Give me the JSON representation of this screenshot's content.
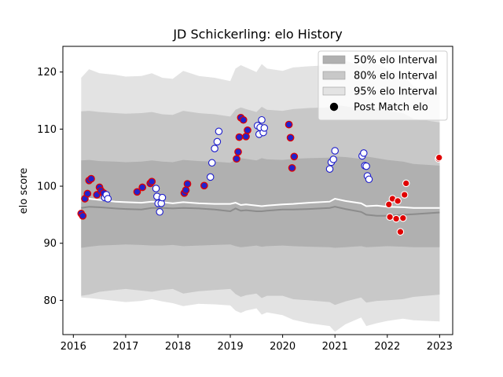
{
  "chart_data": {
    "type": "scatter",
    "title": "JD Schickerling: elo History",
    "xlabel": "",
    "ylabel": "elo score",
    "xlim": [
      2015.8,
      2023.25
    ],
    "ylim": [
      74,
      124.5
    ],
    "x_ticks": [
      2016,
      2017,
      2018,
      2019,
      2020,
      2021,
      2022,
      2023
    ],
    "x_tick_labels": [
      "2016",
      "2017",
      "2018",
      "2019",
      "2020",
      "2021",
      "2022",
      "2023"
    ],
    "y_ticks": [
      80,
      90,
      100,
      110,
      120
    ],
    "y_tick_labels": [
      "80",
      "90",
      "100",
      "110",
      "120"
    ],
    "grid": false,
    "legend_position": "top-right",
    "legend": [
      {
        "label": "50% elo Interval",
        "kind": "band",
        "color": "#b0b0b0"
      },
      {
        "label": "80% elo Interval",
        "kind": "band",
        "color": "#c8c8c8"
      },
      {
        "label": "95% elo Interval",
        "kind": "band",
        "color": "#e3e3e3"
      },
      {
        "label": "Post Match elo",
        "kind": "marker",
        "color": "#000000"
      }
    ],
    "colors": {
      "band_50": "#b0b0b0",
      "band_80": "#c8c8c8",
      "band_95": "#e3e3e3",
      "median_line": "#ffffff",
      "mean_line": "#8c8c8c",
      "win_face": "#2222cc",
      "win_edge": "#e00000",
      "loss_face": "#ffffff",
      "loss_edge": "#1a1acc",
      "recent_face": "#e00000",
      "recent_edge": "#ffffff"
    },
    "bands": {
      "x": [
        2016.15,
        2016.3,
        2016.5,
        2016.8,
        2017.0,
        2017.3,
        2017.5,
        2017.7,
        2017.9,
        2018.1,
        2018.4,
        2018.7,
        2019.0,
        2019.1,
        2019.2,
        2019.3,
        2019.5,
        2019.6,
        2019.7,
        2020.0,
        2020.2,
        2020.5,
        2020.9,
        2021.0,
        2021.2,
        2021.5,
        2021.6,
        2021.8,
        2022.0,
        2022.3,
        2022.5,
        2023.0
      ],
      "p97_5": [
        119,
        120.5,
        119.8,
        119.5,
        119.2,
        119.3,
        119.8,
        119,
        118.8,
        120.2,
        119.3,
        119,
        118.4,
        120.6,
        121.2,
        120.8,
        120,
        121.4,
        120.6,
        120.2,
        120.8,
        121,
        121.2,
        121.8,
        122,
        121,
        122,
        121.5,
        120.5,
        119.5,
        117.5,
        116.3
      ],
      "p90": [
        113.1,
        113.2,
        113,
        112.8,
        112.7,
        112.8,
        113,
        112.6,
        112.5,
        113.2,
        112.8,
        112.6,
        112.2,
        113.4,
        113.8,
        113.5,
        113,
        113.9,
        113.4,
        113.2,
        113.5,
        113.7,
        113.8,
        114.2,
        114,
        113.5,
        114.2,
        113.7,
        113.2,
        112.8,
        111.8,
        111.2
      ],
      "p75": [
        104.5,
        104.6,
        104.4,
        104.3,
        104.2,
        104.3,
        104.5,
        104.3,
        104.2,
        104.6,
        104.4,
        104.3,
        104.1,
        104.7,
        104.9,
        104.8,
        104.5,
        104.9,
        104.7,
        104.6,
        104.8,
        104.9,
        105,
        105.2,
        105.1,
        104.8,
        105.2,
        104.9,
        104.6,
        104.3,
        103.9,
        103.6
      ],
      "p25": [
        89.2,
        89.4,
        89.6,
        89.7,
        89.8,
        89.7,
        89.6,
        89.6,
        89.7,
        89.5,
        89.6,
        89.7,
        89.8,
        89.5,
        89.3,
        89.4,
        89.6,
        89.4,
        89.5,
        89.6,
        89.5,
        89.4,
        89.3,
        89.2,
        89.3,
        89.5,
        89.3,
        89.4,
        89.5,
        89.4,
        89.3,
        89.3
      ],
      "p10": [
        80.8,
        81,
        81.5,
        81.8,
        82,
        81.7,
        81.5,
        81.8,
        82,
        81.2,
        81.6,
        81.8,
        82,
        81.1,
        80.6,
        80.9,
        81.2,
        80.4,
        80.8,
        80.8,
        80.2,
        80,
        79.7,
        79.2,
        79.8,
        80.5,
        79.6,
        79.9,
        80,
        80.2,
        80.6,
        81
      ],
      "p2_5": [
        80.5,
        80.4,
        80.2,
        79.9,
        79.7,
        79.9,
        80.2,
        79.8,
        79.5,
        79,
        79.4,
        79.3,
        79.1,
        78.2,
        77.8,
        78.2,
        78.6,
        77.5,
        77.9,
        77.4,
        76.6,
        76,
        75.5,
        74.5,
        75.8,
        77,
        75.5,
        76,
        76.4,
        76.8,
        76.5,
        76.3
      ],
      "median": [
        97.5,
        97.8,
        97.6,
        97.3,
        97.2,
        97.1,
        97.3,
        97.2,
        97,
        97.2,
        97,
        96.9,
        96.9,
        97.1,
        96.7,
        96.8,
        96.6,
        96.5,
        96.6,
        96.8,
        96.9,
        97.1,
        97.3,
        97.8,
        97.4,
        97,
        96.5,
        96.6,
        96.4,
        96.3,
        96.2,
        96.2
      ],
      "mean": [
        96.2,
        96.4,
        96.3,
        96.1,
        96,
        95.9,
        96.2,
        96.2,
        96.1,
        96.2,
        96.1,
        95.9,
        95.6,
        96.1,
        95.7,
        95.8,
        95.6,
        95.6,
        95.7,
        95.9,
        95.9,
        96,
        96.2,
        96.4,
        96,
        95.5,
        95,
        94.8,
        94.8,
        95,
        95.1,
        95.4
      ]
    },
    "points_win": {
      "x": [
        2016.15,
        2016.18,
        2016.22,
        2016.27,
        2016.3,
        2016.34,
        2016.45,
        2016.5,
        2016.53,
        2016.58,
        2017.22,
        2017.32,
        2017.47,
        2017.5,
        2018.12,
        2018.15,
        2018.18,
        2018.5,
        2019.12,
        2019.15,
        2019.17,
        2019.2,
        2019.25,
        2019.3,
        2019.33,
        2020.12,
        2020.15,
        2020.18,
        2020.22
      ],
      "y": [
        95.2,
        94.8,
        97.8,
        98.7,
        101.0,
        101.3,
        98.5,
        99.8,
        99.2,
        98.8,
        99.0,
        99.8,
        100.5,
        100.8,
        98.8,
        99.3,
        100.4,
        100.1,
        104.8,
        106.0,
        108.6,
        112.0,
        111.6,
        108.7,
        109.8,
        110.8,
        108.5,
        103.2,
        105.2
      ]
    },
    "points_loss": {
      "x": [
        2016.6,
        2016.63,
        2016.66,
        2017.58,
        2017.6,
        2017.62,
        2017.65,
        2017.68,
        2017.7,
        2018.62,
        2018.65,
        2018.7,
        2018.75,
        2018.78,
        2019.52,
        2019.55,
        2019.57,
        2019.6,
        2019.63,
        2019.65,
        2020.9,
        2020.93,
        2020.97,
        2021.0,
        2021.52,
        2021.55,
        2021.57,
        2021.6,
        2021.62,
        2021.65
      ],
      "y": [
        98.0,
        98.5,
        97.8,
        99.6,
        98.2,
        97.0,
        95.5,
        97.0,
        98.0,
        101.6,
        104.1,
        106.6,
        107.8,
        109.6,
        110.6,
        109.1,
        110.3,
        111.6,
        109.4,
        110.2,
        103.0,
        104.2,
        104.7,
        106.2,
        105.3,
        105.8,
        103.6,
        103.5,
        101.8,
        101.2
      ]
    },
    "points_recent": {
      "x": [
        2022.03,
        2022.05,
        2022.1,
        2022.17,
        2022.2,
        2022.25,
        2022.3,
        2022.33,
        2022.36,
        2022.98,
        2022.99
      ],
      "y": [
        96.8,
        94.6,
        97.8,
        94.3,
        97.4,
        92.0,
        94.4,
        98.5,
        100.5,
        104.8,
        105.0
      ]
    }
  }
}
